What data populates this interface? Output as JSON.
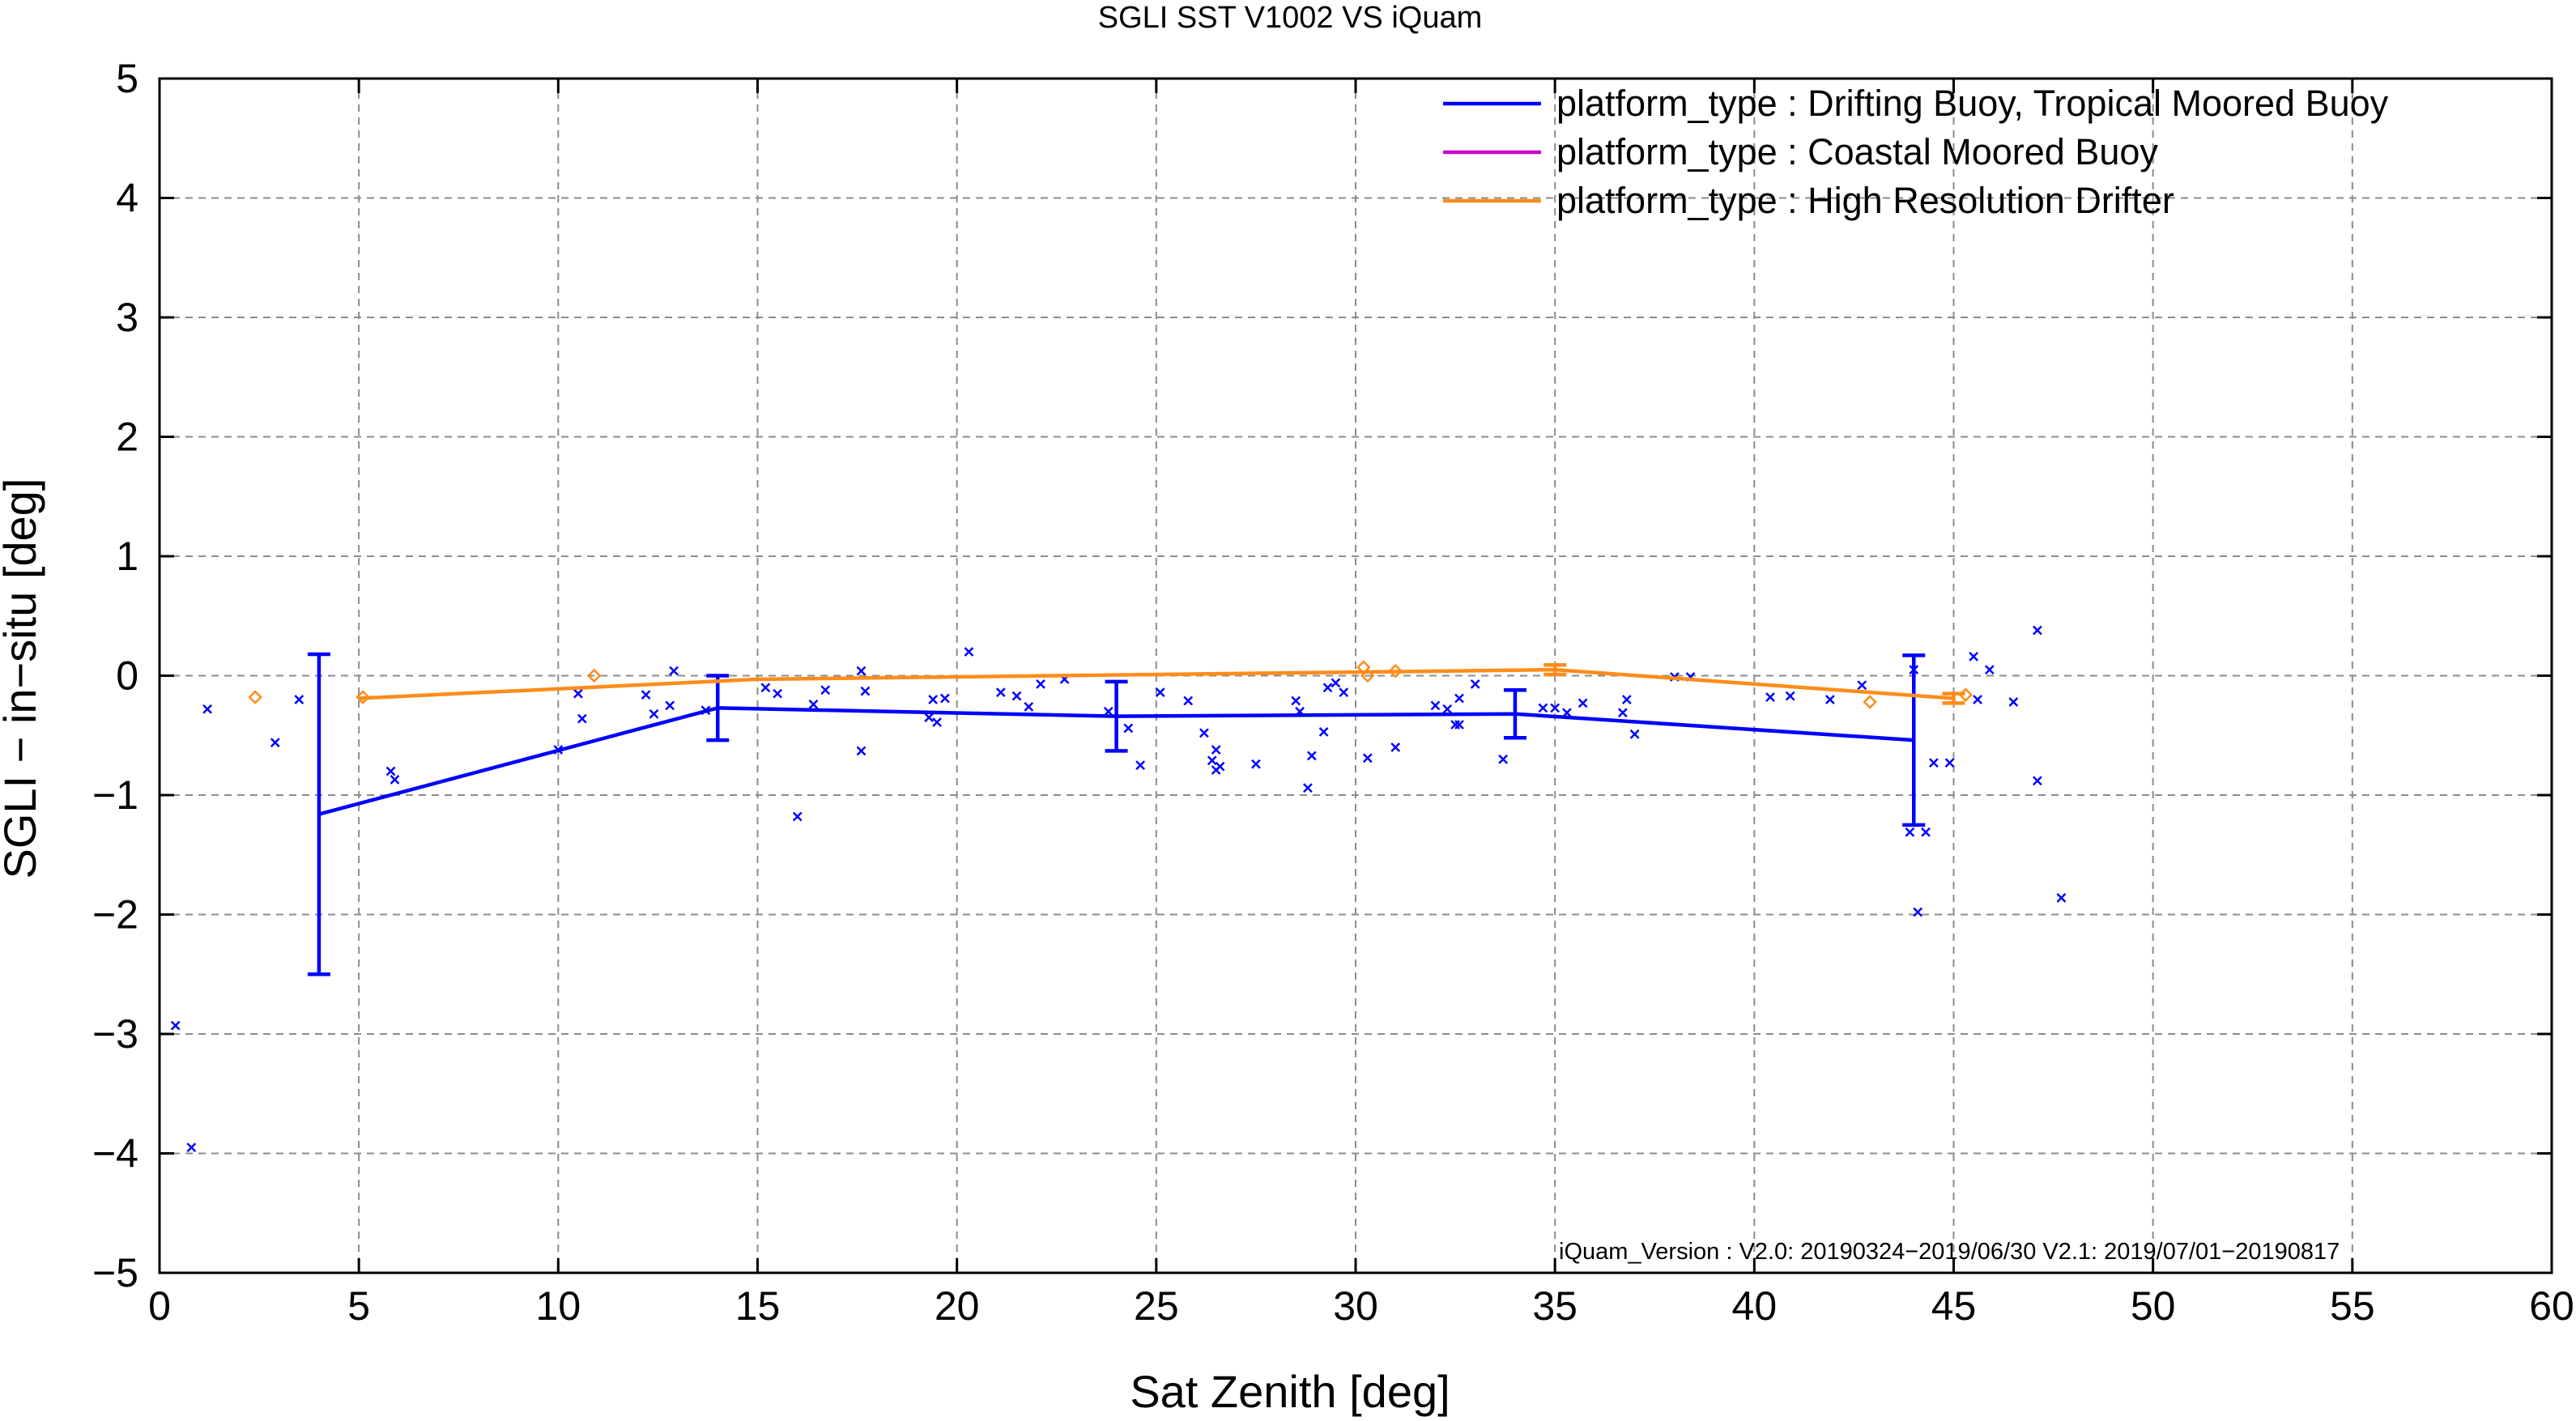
{
  "chart_data": {
    "type": "scatter",
    "title": "SGLI SST V1002 VS iQuam",
    "xlabel": "Sat Zenith [deg]",
    "ylabel": "SGLI − in−situ [deg]",
    "xlim": [
      0,
      60
    ],
    "ylim": [
      -5,
      5
    ],
    "xticks": [
      0,
      5,
      10,
      15,
      20,
      25,
      30,
      35,
      40,
      45,
      50,
      55,
      60
    ],
    "yticks": [
      -5,
      -4,
      -3,
      -2,
      -1,
      0,
      1,
      2,
      3,
      4,
      5
    ],
    "xtick_labels": [
      "0",
      "5",
      "10",
      "15",
      "20",
      "25",
      "30",
      "35",
      "40",
      "45",
      "50",
      "55",
      "60"
    ],
    "ytick_labels": [
      "−5",
      "−4",
      "−3",
      "−2",
      "−1",
      "0",
      "1",
      "2",
      "3",
      "4",
      "5"
    ],
    "grid": true,
    "legend_position": "top-right",
    "annotation": "iQuam_Version :  V2.0: 20190324−2019/06/30 V2.1: 2019/07/01−20190817",
    "series": [
      {
        "name": "platform_type : Drifting Buoy, Tropical Moored Buoy",
        "color": "#0000ff",
        "marker": "cross",
        "points": [
          [
            0.4,
            -2.93
          ],
          [
            0.8,
            -3.95
          ],
          [
            1.2,
            -0.28
          ],
          [
            2.9,
            -0.56
          ],
          [
            3.5,
            -0.2
          ],
          [
            5.8,
            -0.8
          ],
          [
            5.9,
            -0.87
          ],
          [
            10.0,
            -0.62
          ],
          [
            10.5,
            -0.15
          ],
          [
            10.6,
            -0.36
          ],
          [
            12.2,
            -0.16
          ],
          [
            12.4,
            -0.32
          ],
          [
            12.8,
            -0.25
          ],
          [
            12.9,
            0.04
          ],
          [
            13.7,
            -0.29
          ],
          [
            15.2,
            -0.1
          ],
          [
            15.5,
            -0.15
          ],
          [
            16.0,
            -1.18
          ],
          [
            16.4,
            -0.24
          ],
          [
            16.7,
            -0.12
          ],
          [
            17.6,
            0.04
          ],
          [
            17.6,
            -0.63
          ],
          [
            17.7,
            -0.13
          ],
          [
            19.3,
            -0.35
          ],
          [
            19.4,
            -0.2
          ],
          [
            19.5,
            -0.39
          ],
          [
            19.7,
            -0.19
          ],
          [
            20.3,
            0.2
          ],
          [
            21.1,
            -0.14
          ],
          [
            21.5,
            -0.17
          ],
          [
            21.8,
            -0.26
          ],
          [
            22.1,
            -0.07
          ],
          [
            22.7,
            -0.03
          ],
          [
            23.8,
            -0.3
          ],
          [
            24.3,
            -0.44
          ],
          [
            24.6,
            -0.75
          ],
          [
            25.1,
            -0.14
          ],
          [
            25.8,
            -0.21
          ],
          [
            26.2,
            -0.48
          ],
          [
            26.4,
            -0.71
          ],
          [
            26.5,
            -0.79
          ],
          [
            26.5,
            -0.62
          ],
          [
            26.6,
            -0.76
          ],
          [
            27.5,
            -0.74
          ],
          [
            28.5,
            -0.21
          ],
          [
            28.6,
            -0.3
          ],
          [
            28.8,
            -0.94
          ],
          [
            28.9,
            -0.67
          ],
          [
            29.2,
            -0.47
          ],
          [
            29.3,
            -0.1
          ],
          [
            29.5,
            -0.06
          ],
          [
            29.7,
            -0.14
          ],
          [
            30.3,
            -0.69
          ],
          [
            31.0,
            -0.6
          ],
          [
            32.0,
            -0.25
          ],
          [
            32.3,
            -0.28
          ],
          [
            32.5,
            -0.41
          ],
          [
            32.6,
            -0.19
          ],
          [
            32.6,
            -0.41
          ],
          [
            33.0,
            -0.07
          ],
          [
            33.7,
            -0.7
          ],
          [
            34.7,
            -0.27
          ],
          [
            35.0,
            -0.27
          ],
          [
            35.3,
            -0.31
          ],
          [
            35.7,
            -0.23
          ],
          [
            36.7,
            -0.31
          ],
          [
            36.8,
            -0.2
          ],
          [
            37.0,
            -0.49
          ],
          [
            38.0,
            -0.01
          ],
          [
            38.4,
            -0.01
          ],
          [
            40.4,
            -0.18
          ],
          [
            40.9,
            -0.17
          ],
          [
            41.9,
            -0.2
          ],
          [
            42.7,
            -0.08
          ],
          [
            43.9,
            -1.31
          ],
          [
            44.0,
            0.05
          ],
          [
            44.1,
            -1.98
          ],
          [
            44.3,
            -1.31
          ],
          [
            44.5,
            -0.73
          ],
          [
            44.9,
            -0.73
          ],
          [
            45.5,
            0.16
          ],
          [
            45.6,
            -0.2
          ],
          [
            45.9,
            0.05
          ],
          [
            46.5,
            -0.22
          ],
          [
            47.1,
            0.38
          ],
          [
            47.1,
            -0.88
          ],
          [
            47.7,
            -1.86
          ]
        ],
        "mean_line": {
          "x": [
            4.0,
            14.0,
            24.0,
            34.0,
            44.0
          ],
          "y": [
            -1.16,
            -0.27,
            -0.34,
            -0.32,
            -0.54
          ],
          "err": [
            1.34,
            0.27,
            0.29,
            0.2,
            0.71
          ]
        }
      },
      {
        "name": "platform_type : Coastal Moored Buoy",
        "color": "#cc00cc",
        "marker": "none",
        "points": []
      },
      {
        "name": "platform_type : High Resolution Drifter",
        "color": "#ff8c1a",
        "marker": "diamond",
        "points": [
          [
            2.4,
            -0.18
          ],
          [
            5.1,
            -0.18
          ],
          [
            10.9,
            0.0
          ],
          [
            30.2,
            0.07
          ],
          [
            30.3,
            0.0
          ],
          [
            31.0,
            0.04
          ],
          [
            42.9,
            -0.22
          ],
          [
            45.3,
            -0.16
          ]
        ],
        "mean_line": {
          "x": [
            5.0,
            15.0,
            35.0,
            45.0
          ],
          "y": [
            -0.19,
            -0.03,
            0.05,
            -0.19
          ],
          "err": [
            0.0,
            0.0,
            0.04,
            0.04
          ]
        }
      }
    ]
  }
}
